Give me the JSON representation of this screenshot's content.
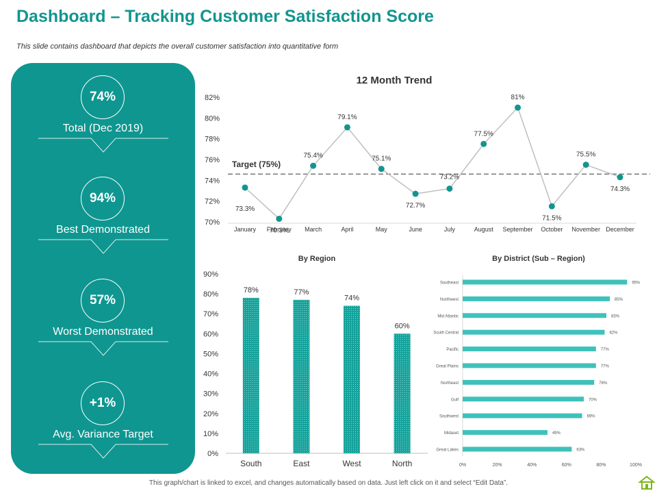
{
  "header": {
    "title": "Dashboard – Tracking Customer Satisfaction Score",
    "subtitle": "This slide contains dashboard that depicts the overall customer satisfaction into quantitative form"
  },
  "kpis": [
    {
      "value": "74%",
      "label": "Total (Dec 2019)"
    },
    {
      "value": "94%",
      "label": "Best Demonstrated"
    },
    {
      "value": "57%",
      "label": "Worst Demonstrated"
    },
    {
      "value": "+1%",
      "label": "Avg. Variance Target"
    }
  ],
  "footer": {
    "note": "This graph/chart is linked to excel, and changes automatically based on data. Just left click on it and select “Edit Data”."
  },
  "colors": {
    "accent": "#12958f",
    "panel": "#0f9690",
    "bar": "#3fc1bb",
    "line": "#bfbfbf"
  },
  "chart_data": [
    {
      "id": "trend",
      "type": "line",
      "title": "12 Month Trend",
      "categories": [
        "January",
        "February",
        "March",
        "April",
        "May",
        "June",
        "July",
        "August",
        "September",
        "October",
        "November",
        "December"
      ],
      "values": [
        73.3,
        70.3,
        75.4,
        79.1,
        75.1,
        72.7,
        73.2,
        77.5,
        81,
        71.5,
        75.5,
        74.3
      ],
      "data_labels": [
        "73.3%",
        "70.3%",
        "75.4%",
        "79.1%",
        "75.1%",
        "72.7%",
        "73.2%",
        "77.5%",
        "81%",
        "71.5%",
        "75.5%",
        "74.3%"
      ],
      "yticks": [
        "70%",
        "72%",
        "74%",
        "76%",
        "78%",
        "80%",
        "82%"
      ],
      "ylim": [
        70,
        82
      ],
      "target": {
        "label": "Target (75%)",
        "value": 74.6
      },
      "grid": false
    },
    {
      "id": "region",
      "type": "bar",
      "title": "By Region",
      "categories": [
        "South",
        "East",
        "West",
        "North"
      ],
      "values": [
        78,
        77,
        74,
        60
      ],
      "data_labels": [
        "78%",
        "77%",
        "74%",
        "60%"
      ],
      "yticks": [
        "0%",
        "10%",
        "20%",
        "30%",
        "40%",
        "50%",
        "60%",
        "70%",
        "80%",
        "90%"
      ],
      "ylim": [
        0,
        90
      ]
    },
    {
      "id": "district",
      "type": "bar",
      "orientation": "horizontal",
      "title": "By District (Sub – Region)",
      "categories": [
        "Southeast",
        "Northwest",
        "Mid Atlantic",
        "South Central",
        "Pacific",
        "Great Plains",
        "Northeast",
        "Gulf",
        "Southwest",
        "Midaset",
        "Great Lakes"
      ],
      "values": [
        95,
        85,
        83,
        82,
        77,
        77,
        76,
        70,
        69,
        49,
        63
      ],
      "data_labels": [
        "95%",
        "85%",
        "83%",
        "82%",
        "77%",
        "77%",
        "76%",
        "70%",
        "69%",
        "49%",
        "63%"
      ],
      "xticks": [
        "0%",
        "20%",
        "40%",
        "60%",
        "80%",
        "100%"
      ],
      "xlim": [
        0,
        100
      ]
    }
  ]
}
